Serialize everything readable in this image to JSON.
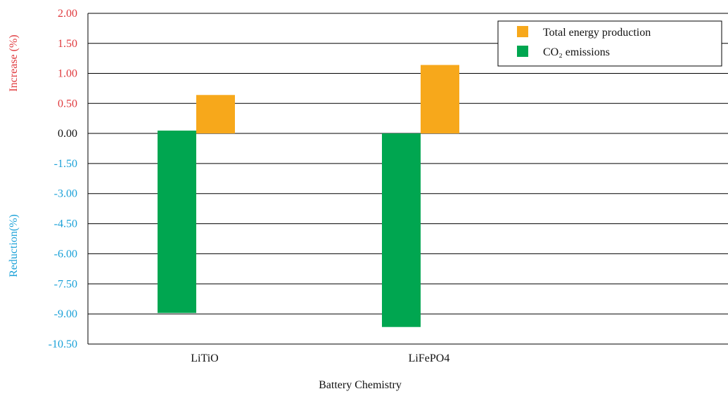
{
  "chart_data": {
    "type": "bar",
    "categories": [
      "LiTiO",
      "LiFePO4"
    ],
    "series": [
      {
        "name": "Total energy production",
        "values": [
          0.64,
          1.14
        ],
        "color": "#F7A81B"
      },
      {
        "name": "CO₂ emissions",
        "values": [
          -8.95,
          -9.65
        ],
        "color": "#00A650"
      }
    ],
    "xlabel": "Battery Chemistry",
    "ylabel_positive": "Increase (%)",
    "ylabel_negative": "Reduction(%)",
    "ylabel_positive_color": "#E03A3E",
    "ylabel_negative_color": "#1BA1D8",
    "positive_ticks": [
      "2.00",
      "1.50",
      "1.00",
      "0.50",
      "0.00"
    ],
    "negative_ticks": [
      "-1.50",
      "-3.00",
      "-4.50",
      "-6.00",
      "-7.50",
      "-9.00",
      "-10.50"
    ],
    "positive_range": [
      0,
      2.0
    ],
    "negative_range": [
      -10.5,
      0
    ],
    "grid": true,
    "legend_position": "top-right"
  }
}
